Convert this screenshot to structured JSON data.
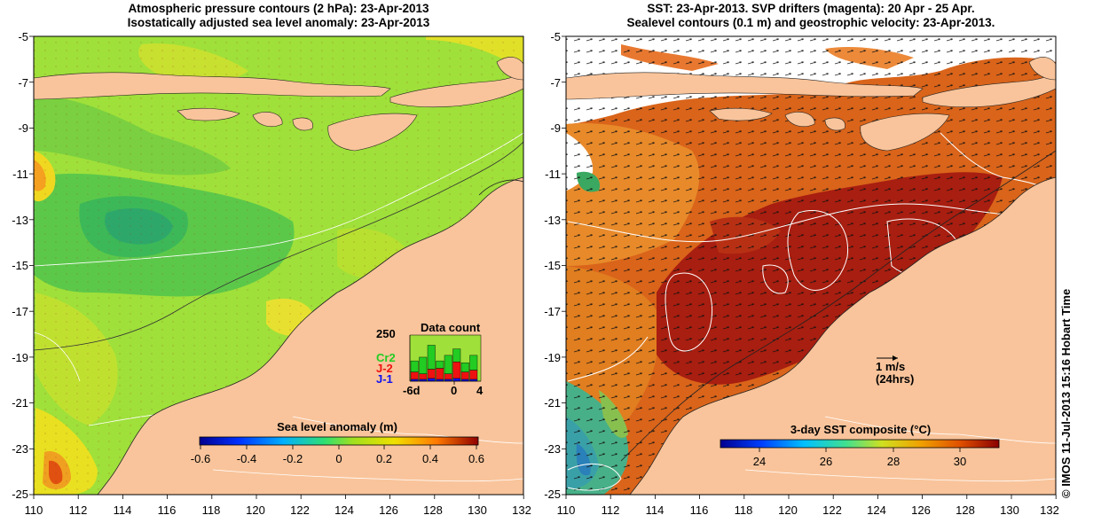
{
  "left_panel": {
    "title_line1": "Atmospheric pressure contours (2 hPa): 23-Apr-2013",
    "title_line2": "Isostatically adjusted sea level anomaly: 23-Apr-2013",
    "colorbar_title": "Sea level anomaly (m)",
    "colorbar_ticks": [
      "-0.6",
      "-0.4",
      "-0.2",
      "0",
      "0.2",
      "0.4",
      "0.6"
    ],
    "inset": {
      "title": "Data count",
      "ymax_label": "250",
      "xticks": [
        "-6d",
        "0",
        "4"
      ],
      "legend": [
        {
          "label": "Cr2",
          "color": "#22cc22"
        },
        {
          "label": "J-2",
          "color": "#ee1111"
        },
        {
          "label": "J-1",
          "color": "#1111ee"
        }
      ],
      "bars": [
        {
          "green": 60,
          "red": 40,
          "blue": 10
        },
        {
          "green": 90,
          "red": 30,
          "blue": 10
        },
        {
          "green": 130,
          "red": 50,
          "blue": 15
        },
        {
          "green": 40,
          "red": 60,
          "blue": 10
        },
        {
          "green": 100,
          "red": 30,
          "blue": 10
        },
        {
          "green": 70,
          "red": 90,
          "blue": 15
        },
        {
          "green": 50,
          "red": 40,
          "blue": 10
        },
        {
          "green": 80,
          "red": 50,
          "blue": 10
        }
      ]
    }
  },
  "right_panel": {
    "title_line1": "SST: 23-Apr-2013. SVP drifters (magenta): 20 Apr - 25 Apr.",
    "title_line2": "Sealevel contours (0.1 m) and geostrophic velocity: 23-Apr-2013.",
    "colorbar_title": "3-day SST composite (°C)",
    "colorbar_ticks": [
      "24",
      "26",
      "28",
      "30"
    ],
    "scale_label": "1 m/s",
    "scale_sublabel": "(24hrs)"
  },
  "y_ticks": [
    "-5",
    "-7",
    "-9",
    "-11",
    "-13",
    "-15",
    "-17",
    "-19",
    "-21",
    "-23",
    "-25"
  ],
  "x_ticks": [
    "110",
    "112",
    "114",
    "116",
    "118",
    "120",
    "122",
    "124",
    "126",
    "128",
    "130",
    "132"
  ],
  "credit": "© IMOS 11-Jul-2013 15:16 Hobart Time",
  "colors": {
    "land": "#f9c49b",
    "sla_bg": "#9fe03a",
    "sst_bg": "#d9641a"
  }
}
